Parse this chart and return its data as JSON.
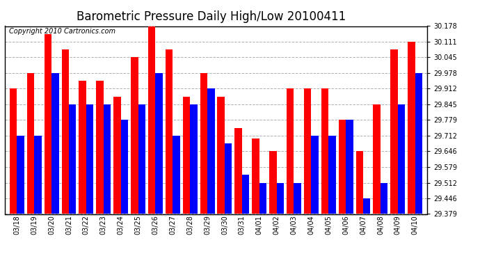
{
  "title": "Barometric Pressure Daily High/Low 20100411",
  "copyright": "Copyright 2010 Cartronics.com",
  "dates": [
    "03/18",
    "03/19",
    "03/20",
    "03/21",
    "03/22",
    "03/23",
    "03/24",
    "03/25",
    "03/26",
    "03/27",
    "03/28",
    "03/29",
    "03/30",
    "03/31",
    "04/01",
    "04/02",
    "04/03",
    "04/04",
    "04/05",
    "04/06",
    "04/07",
    "04/08",
    "04/09",
    "04/10"
  ],
  "highs": [
    29.912,
    29.978,
    30.145,
    30.078,
    29.945,
    29.945,
    29.878,
    30.045,
    30.178,
    30.078,
    29.878,
    29.978,
    29.878,
    29.745,
    29.7,
    29.646,
    29.912,
    29.912,
    29.912,
    29.779,
    29.646,
    29.845,
    30.078,
    30.111
  ],
  "lows": [
    29.712,
    29.712,
    29.978,
    29.845,
    29.845,
    29.845,
    29.779,
    29.845,
    29.978,
    29.712,
    29.845,
    29.912,
    29.679,
    29.545,
    29.512,
    29.512,
    29.512,
    29.712,
    29.712,
    29.779,
    29.446,
    29.512,
    29.845,
    29.978
  ],
  "high_color": "#ff0000",
  "low_color": "#0000ff",
  "bg_color": "#ffffff",
  "grid_color": "#b0b0b0",
  "ymin": 29.379,
  "ymax": 30.178,
  "yticks": [
    29.379,
    29.446,
    29.512,
    29.579,
    29.646,
    29.712,
    29.779,
    29.845,
    29.912,
    29.978,
    30.045,
    30.111,
    30.178
  ],
  "title_fontsize": 12,
  "copyright_fontsize": 7,
  "tick_fontsize": 7,
  "bar_width": 0.42
}
